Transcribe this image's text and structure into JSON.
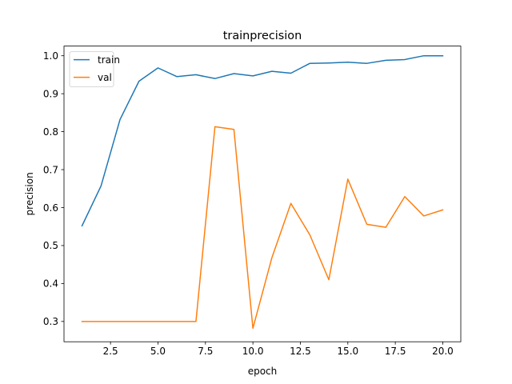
{
  "chart_data": {
    "type": "line",
    "title": "trainprecision",
    "xlabel": "epoch",
    "ylabel": "precision",
    "xlim": [
      0.05,
      20.95
    ],
    "ylim": [
      0.2465,
      1.0255
    ],
    "xticks": [
      2.5,
      5.0,
      7.5,
      10.0,
      12.5,
      15.0,
      17.5,
      20.0
    ],
    "xtick_labels": [
      "2.5",
      "5.0",
      "7.5",
      "10.0",
      "12.5",
      "15.0",
      "17.5",
      "20.0"
    ],
    "yticks": [
      0.3,
      0.4,
      0.5,
      0.6,
      0.7,
      0.8,
      0.9,
      1.0
    ],
    "ytick_labels": [
      "0.3",
      "0.4",
      "0.5",
      "0.6",
      "0.7",
      "0.8",
      "0.9",
      "1.0"
    ],
    "grid": false,
    "legend_position": "top-left",
    "x": [
      1,
      2,
      3,
      4,
      5,
      6,
      7,
      8,
      9,
      10,
      11,
      12,
      13,
      14,
      15,
      16,
      17,
      18,
      19,
      20
    ],
    "series": [
      {
        "name": "train",
        "color": "#1f77b4",
        "values": [
          0.552,
          0.657,
          0.832,
          0.933,
          0.968,
          0.945,
          0.95,
          0.94,
          0.953,
          0.947,
          0.959,
          0.954,
          0.98,
          0.981,
          0.983,
          0.98,
          0.988,
          0.99,
          1.0,
          1.0
        ]
      },
      {
        "name": "val",
        "color": "#ff7f0e",
        "values": [
          0.3,
          0.3,
          0.3,
          0.3,
          0.3,
          0.3,
          0.3,
          0.813,
          0.806,
          0.282,
          0.468,
          0.611,
          0.528,
          0.41,
          0.675,
          0.556,
          0.548,
          0.629,
          0.578,
          0.594
        ]
      }
    ]
  }
}
